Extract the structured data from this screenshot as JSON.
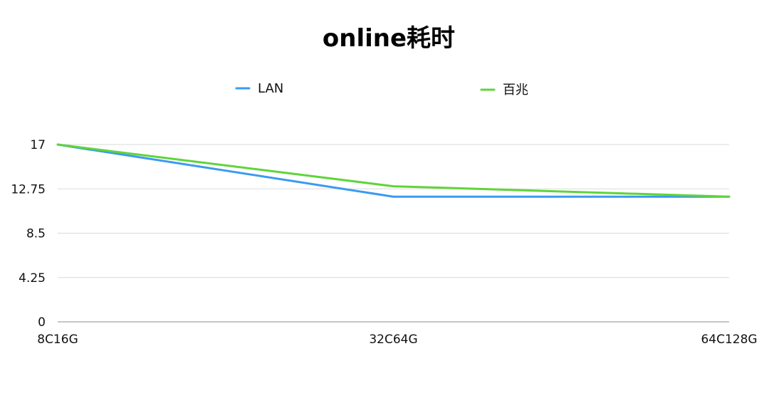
{
  "chart_data": {
    "type": "line",
    "title": "online耗时",
    "xlabel": "",
    "ylabel": "",
    "categories": [
      "8C16G",
      "32C64G",
      "64C128G"
    ],
    "yticks": [
      "0",
      "4.25",
      "8.5",
      "12.75",
      "17"
    ],
    "ylim": [
      0,
      17
    ],
    "grid": true,
    "legend_position": "top",
    "series": [
      {
        "name": "LAN",
        "color": "#3a9af2",
        "values": [
          17,
          12,
          12
        ]
      },
      {
        "name": "百兆",
        "color": "#5fd43a",
        "values": [
          17,
          13,
          12
        ]
      }
    ]
  }
}
